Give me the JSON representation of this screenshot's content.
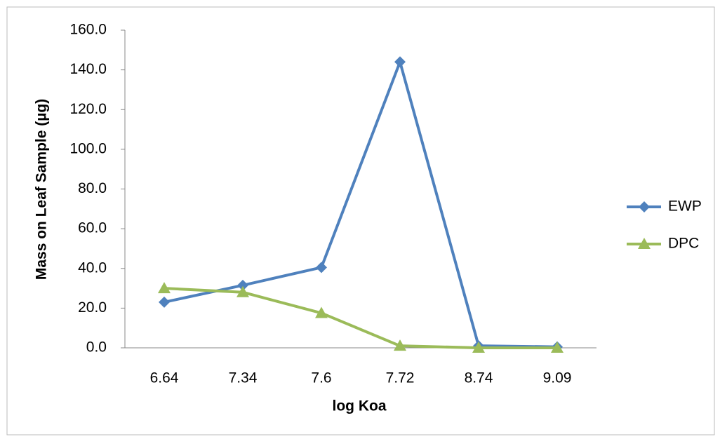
{
  "chart_data": {
    "type": "line",
    "x_label": "log Koa",
    "y_label": "Mass on Leaf Sample (µg)",
    "categories": [
      "6.64",
      "7.34",
      "7.6",
      "7.72",
      "8.74",
      "9.09"
    ],
    "series": [
      {
        "name": "EWP",
        "color": "#4f81bd",
        "marker": "diamond",
        "values": [
          23,
          31.5,
          40.5,
          144,
          1,
          0.5
        ]
      },
      {
        "name": "DPC",
        "color": "#9bbb59",
        "marker": "triangle",
        "values": [
          30,
          28,
          17.5,
          1,
          0,
          0
        ]
      }
    ],
    "ylim": [
      0,
      160
    ],
    "yticks": [
      {
        "value": 0,
        "label": "0.0"
      },
      {
        "value": 20,
        "label": "20.0"
      },
      {
        "value": 40,
        "label": "40.0"
      },
      {
        "value": 60,
        "label": "60.0"
      },
      {
        "value": 80,
        "label": "80.0"
      },
      {
        "value": 100,
        "label": "100.0"
      },
      {
        "value": 120,
        "label": "120.0"
      },
      {
        "value": 140,
        "label": "140.0"
      },
      {
        "value": 160,
        "label": "160.0"
      }
    ],
    "grid": false,
    "legend": "right"
  }
}
